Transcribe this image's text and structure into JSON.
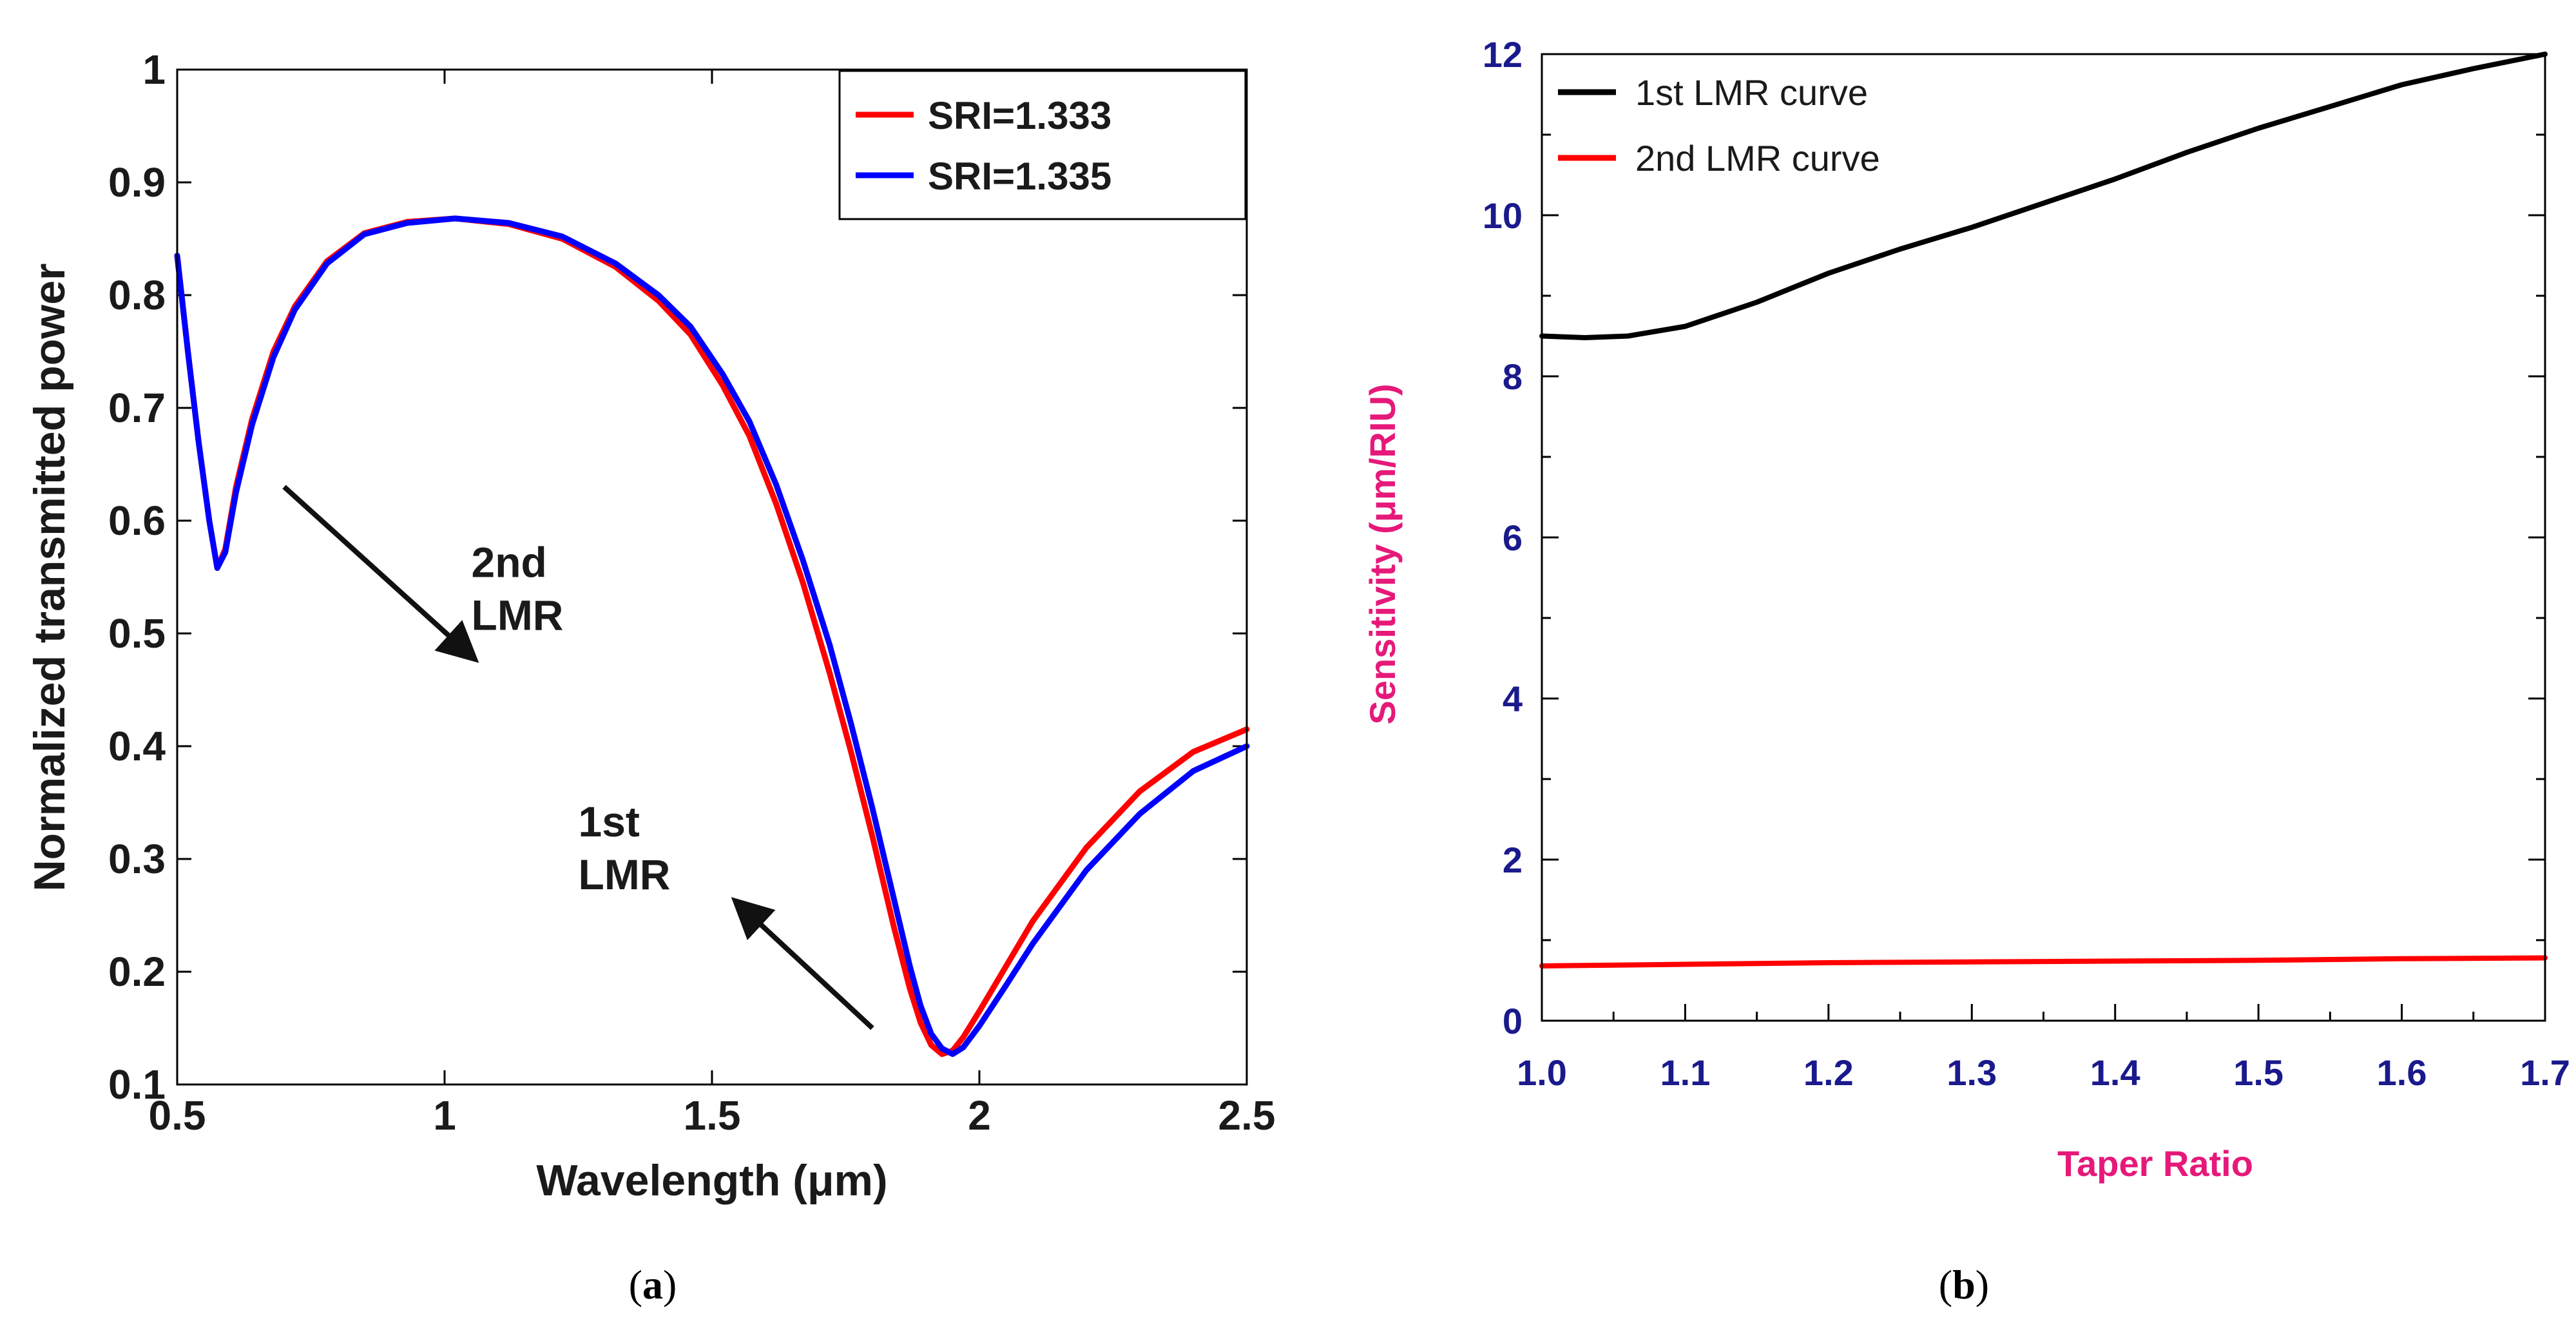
{
  "chart_data": [
    {
      "type": "line",
      "panel": "(a)",
      "caption_prefix": "(",
      "caption_letter": "a",
      "caption_suffix": ")",
      "title": "",
      "xlabel": "Wavelength (μm)",
      "ylabel": "Normalized transmitted power",
      "xlim": [
        0.5,
        2.5
      ],
      "ylim": [
        0.1,
        1.0
      ],
      "xticks": [
        "0.5",
        "1",
        "1.5",
        "2",
        "2.5"
      ],
      "yticks": [
        "0.1",
        "0.2",
        "0.3",
        "0.4",
        "0.5",
        "0.6",
        "0.7",
        "0.8",
        "0.9",
        "1"
      ],
      "legend_position": "top-right",
      "series": [
        {
          "name": "SRI=1.333",
          "color": "#ff0000",
          "x": [
            0.5,
            0.52,
            0.54,
            0.56,
            0.575,
            0.59,
            0.61,
            0.64,
            0.68,
            0.72,
            0.78,
            0.85,
            0.93,
            1.02,
            1.12,
            1.22,
            1.32,
            1.4,
            1.46,
            1.52,
            1.57,
            1.62,
            1.67,
            1.72,
            1.76,
            1.8,
            1.84,
            1.87,
            1.89,
            1.91,
            1.93,
            1.95,
            1.97,
            2.0,
            2.05,
            2.1,
            2.2,
            2.3,
            2.4,
            2.5
          ],
          "y": [
            0.835,
            0.75,
            0.67,
            0.6,
            0.558,
            0.575,
            0.63,
            0.69,
            0.75,
            0.79,
            0.83,
            0.855,
            0.865,
            0.868,
            0.863,
            0.85,
            0.825,
            0.795,
            0.765,
            0.72,
            0.675,
            0.615,
            0.545,
            0.465,
            0.395,
            0.32,
            0.24,
            0.185,
            0.155,
            0.135,
            0.127,
            0.13,
            0.142,
            0.165,
            0.205,
            0.245,
            0.31,
            0.36,
            0.395,
            0.415
          ]
        },
        {
          "name": "SRI=1.335",
          "color": "#0000ff",
          "x": [
            0.5,
            0.52,
            0.54,
            0.56,
            0.575,
            0.59,
            0.61,
            0.64,
            0.68,
            0.72,
            0.78,
            0.85,
            0.93,
            1.02,
            1.12,
            1.22,
            1.32,
            1.4,
            1.46,
            1.52,
            1.57,
            1.62,
            1.67,
            1.72,
            1.76,
            1.8,
            1.84,
            1.87,
            1.89,
            1.91,
            1.93,
            1.95,
            1.97,
            2.0,
            2.05,
            2.1,
            2.2,
            2.3,
            2.4,
            2.5
          ],
          "y": [
            0.835,
            0.75,
            0.67,
            0.6,
            0.558,
            0.572,
            0.625,
            0.685,
            0.745,
            0.787,
            0.828,
            0.854,
            0.864,
            0.868,
            0.864,
            0.852,
            0.828,
            0.8,
            0.772,
            0.73,
            0.688,
            0.632,
            0.565,
            0.49,
            0.42,
            0.345,
            0.265,
            0.205,
            0.17,
            0.145,
            0.132,
            0.127,
            0.133,
            0.152,
            0.188,
            0.225,
            0.29,
            0.34,
            0.378,
            0.4
          ]
        }
      ],
      "annotations": [
        {
          "lines": [
            "2nd",
            "LMR"
          ],
          "arrow_from": [
            0.7,
            0.63
          ],
          "arrow_to": [
            1.05,
            0.48
          ]
        },
        {
          "lines": [
            "1st",
            "LMR"
          ],
          "arrow_from": [
            1.8,
            0.15
          ],
          "arrow_to": [
            1.55,
            0.26
          ]
        }
      ]
    },
    {
      "type": "line",
      "panel": "(b)",
      "caption_prefix": "(",
      "caption_letter": "b",
      "caption_suffix": ")",
      "title": "",
      "xlabel": "Taper Ratio",
      "ylabel": "Sensitivity (μm/RIU)",
      "xlim": [
        1.0,
        1.7
      ],
      "ylim": [
        0,
        12
      ],
      "xticks": [
        "1.0",
        "1.1",
        "1.2",
        "1.3",
        "1.4",
        "1.5",
        "1.6",
        "1.7"
      ],
      "yticks": [
        "0",
        "2",
        "4",
        "6",
        "8",
        "10",
        "12"
      ],
      "legend_position": "top-left",
      "series": [
        {
          "name": "1st LMR curve",
          "color": "#000000",
          "x": [
            1.0,
            1.03,
            1.06,
            1.1,
            1.15,
            1.2,
            1.25,
            1.3,
            1.35,
            1.4,
            1.45,
            1.5,
            1.55,
            1.6,
            1.65,
            1.7
          ],
          "y": [
            8.5,
            8.48,
            8.5,
            8.62,
            8.92,
            9.28,
            9.58,
            9.85,
            10.15,
            10.45,
            10.78,
            11.08,
            11.35,
            11.62,
            11.82,
            12.0
          ]
        },
        {
          "name": "2nd LMR curve",
          "color": "#ff0000",
          "x": [
            1.0,
            1.1,
            1.2,
            1.3,
            1.4,
            1.5,
            1.6,
            1.7
          ],
          "y": [
            0.68,
            0.7,
            0.72,
            0.73,
            0.74,
            0.75,
            0.77,
            0.78
          ]
        }
      ]
    }
  ],
  "colors": {
    "axis_a_text": "#1a1a1a",
    "tick_b_text": "#1a1a8c",
    "axis_b_label": "#e6197a"
  }
}
